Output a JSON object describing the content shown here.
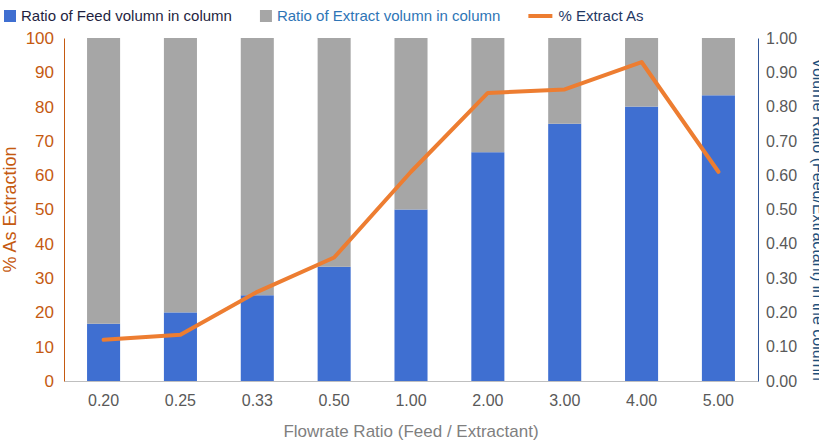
{
  "chart_data": {
    "type": "bar",
    "x_label": "Flowrate Ratio (Feed / Extractant)",
    "y_label": "% As Extraction",
    "y2_label": "Volume Ratio (Feed/Extractant) in the column",
    "categories": [
      "0.20",
      "0.25",
      "0.33",
      "0.50",
      "1.00",
      "2.00",
      "3.00",
      "4.00",
      "5.00"
    ],
    "stacked": true,
    "legend": "top",
    "grid": false,
    "series": [
      {
        "name": "Ratio of Feed volumn in column",
        "type": "bar",
        "axis": "y2",
        "color": "#3f6fd1",
        "values": [
          0.167,
          0.2,
          0.25,
          0.333,
          0.5,
          0.667,
          0.75,
          0.8,
          0.833
        ]
      },
      {
        "name": "Ratio of Extract volumn in column",
        "type": "bar",
        "axis": "y2",
        "color": "#a6a6a6",
        "values": [
          0.833,
          0.8,
          0.75,
          0.667,
          0.5,
          0.333,
          0.25,
          0.2,
          0.167
        ]
      },
      {
        "name": "% Extract As",
        "type": "line",
        "axis": "y",
        "color": "#ed7d31",
        "values": [
          12,
          13.5,
          26,
          36,
          61,
          84,
          85,
          93,
          61
        ]
      }
    ],
    "ylim": [
      0,
      100
    ],
    "yticks": [
      0,
      10,
      20,
      30,
      40,
      50,
      60,
      70,
      80,
      90,
      100
    ],
    "y2lim": [
      0,
      1
    ],
    "y2ticks": [
      {
        "value": 0,
        "label": "0.00"
      },
      {
        "value": 0.1,
        "label": "0.10"
      },
      {
        "value": 0.2,
        "label": "0.20"
      },
      {
        "value": 0.3,
        "label": "0.30"
      },
      {
        "value": 0.4,
        "label": "0.40"
      },
      {
        "value": 0.5,
        "label": "0.50"
      },
      {
        "value": 0.6,
        "label": "0.60"
      },
      {
        "value": 0.7,
        "label": "0.70"
      },
      {
        "value": 0.8,
        "label": "0.80"
      },
      {
        "value": 0.9,
        "label": "0.90"
      },
      {
        "value": 1,
        "label": "1.00"
      }
    ]
  }
}
